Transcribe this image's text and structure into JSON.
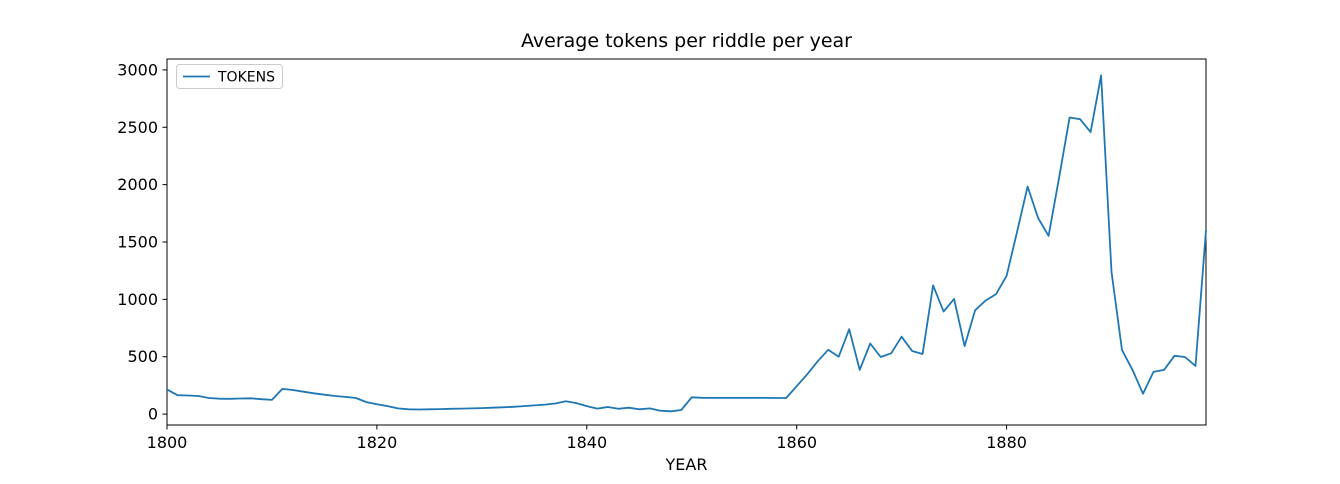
{
  "chart_data": {
    "type": "line",
    "title": "Average tokens per riddle per year",
    "xlabel": "YEAR",
    "ylabel": "",
    "grid": false,
    "legend": {
      "label": "TOKENS",
      "position": "upper left"
    },
    "line_color": "#1f77b4",
    "axis_color": "#000000",
    "legend_border_color": "#cccccc",
    "xlim": [
      1800,
      1899
    ],
    "ylim": [
      -95,
      3095
    ],
    "x_ticks": [
      1800,
      1820,
      1840,
      1860,
      1880
    ],
    "y_ticks": [
      0,
      500,
      1000,
      1500,
      2000,
      2500,
      3000
    ],
    "series": [
      {
        "name": "TOKENS",
        "x_start": 1800,
        "x_step": 1,
        "values": [
          215,
          165,
          162,
          158,
          140,
          134,
          133,
          136,
          138,
          130,
          124,
          220,
          210,
          195,
          181,
          169,
          158,
          150,
          140,
          105,
          86,
          70,
          50,
          42,
          40,
          42,
          44,
          46,
          48,
          50,
          52,
          56,
          59,
          64,
          70,
          76,
          83,
          92,
          112,
          96,
          70,
          48,
          62,
          46,
          56,
          42,
          50,
          30,
          24,
          36,
          146,
          142,
          141,
          141,
          141,
          141,
          141,
          141,
          140,
          140,
          243,
          347,
          460,
          560,
          500,
          740,
          385,
          615,
          498,
          530,
          675,
          550,
          524,
          1122,
          893,
          1004,
          593,
          905,
          990,
          1046,
          1205,
          1590,
          1984,
          1709,
          1553,
          2060,
          2585,
          2570,
          2458,
          2952,
          1240,
          558,
          385,
          178,
          368,
          385,
          508,
          498,
          420,
          1602
        ]
      }
    ]
  }
}
